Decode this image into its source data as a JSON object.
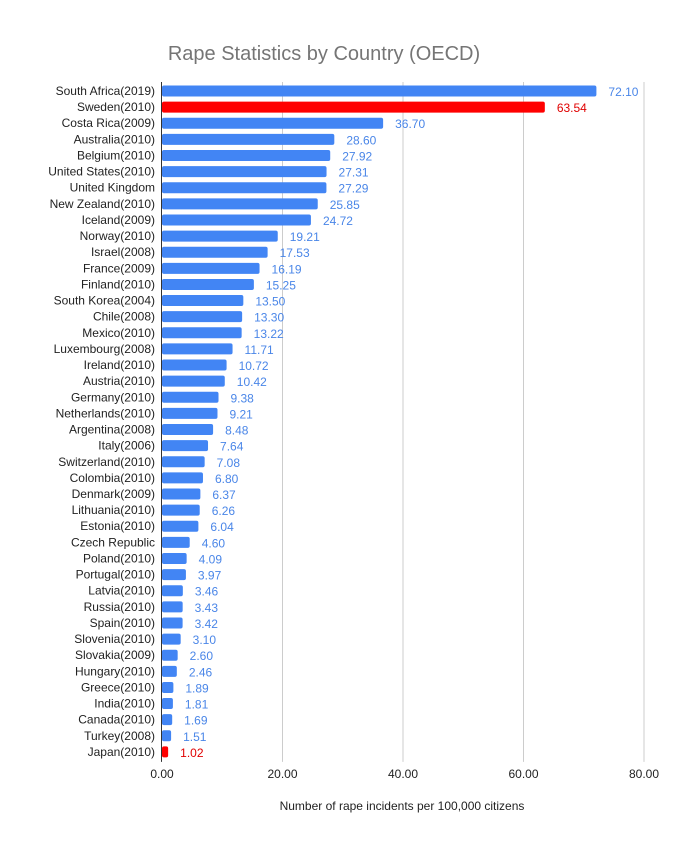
{
  "chart_data": {
    "type": "bar",
    "orientation": "horizontal",
    "title": "Rape Statistics by Country (OECD)",
    "xlabel": "Number of rape incidents per 100,000 citizens",
    "ylabel": "",
    "xlim": [
      0,
      80
    ],
    "xticks": [
      "0.00",
      "20.00",
      "40.00",
      "60.00",
      "80.00"
    ],
    "grid": true,
    "colors": {
      "default": "#4285f4",
      "highlight": "#ff0000",
      "label_default": "#4a86e8",
      "label_highlight": "#e00000",
      "title": "#757575"
    },
    "categories": [
      "South Africa(2019)",
      "Sweden(2010)",
      "Costa Rica(2009)",
      "Australia(2010)",
      "Belgium(2010)",
      "United States(2010)",
      "United Kingdom",
      "New Zealand(2010)",
      "Iceland(2009)",
      "Norway(2010)",
      "Israel(2008)",
      "France(2009)",
      "Finland(2010)",
      "South Korea(2004)",
      "Chile(2008)",
      "Mexico(2010)",
      "Luxembourg(2008)",
      "Ireland(2010)",
      "Austria(2010)",
      "Germany(2010)",
      "Netherlands(2010)",
      "Argentina(2008)",
      "Italy(2006)",
      "Switzerland(2010)",
      "Colombia(2010)",
      "Denmark(2009)",
      "Lithuania(2010)",
      "Estonia(2010)",
      "Czech Republic",
      "Poland(2010)",
      "Portugal(2010)",
      "Latvia(2010)",
      "Russia(2010)",
      "Spain(2010)",
      "Slovenia(2010)",
      "Slovakia(2009)",
      "Hungary(2010)",
      "Greece(2010)",
      "India(2010)",
      "Canada(2010)",
      "Turkey(2008)",
      "Japan(2010)"
    ],
    "values": [
      72.1,
      63.54,
      36.7,
      28.6,
      27.92,
      27.31,
      27.29,
      25.85,
      24.72,
      19.21,
      17.53,
      16.19,
      15.25,
      13.5,
      13.3,
      13.22,
      11.71,
      10.72,
      10.42,
      9.38,
      9.21,
      8.48,
      7.64,
      7.08,
      6.8,
      6.37,
      6.26,
      6.04,
      4.6,
      4.09,
      3.97,
      3.46,
      3.43,
      3.42,
      3.1,
      2.6,
      2.46,
      1.89,
      1.81,
      1.69,
      1.51,
      1.02
    ],
    "data_labels": [
      "72.10",
      "63.54",
      "36.70",
      "28.60",
      "27.92",
      "27.31",
      "27.29",
      "25.85",
      "24.72",
      "19.21",
      "17.53",
      "16.19",
      "15.25",
      "13.50",
      "13.30",
      "13.22",
      "11.71",
      "10.72",
      "10.42",
      "9.38",
      "9.21",
      "8.48",
      "7.64",
      "7.08",
      "6.80",
      "6.37",
      "6.26",
      "6.04",
      "4.60",
      "4.09",
      "3.97",
      "3.46",
      "3.43",
      "3.42",
      "3.10",
      "2.60",
      "2.46",
      "1.89",
      "1.81",
      "1.69",
      "1.51",
      "1.02"
    ],
    "highlighted": [
      "Sweden(2010)",
      "Japan(2010)"
    ]
  }
}
